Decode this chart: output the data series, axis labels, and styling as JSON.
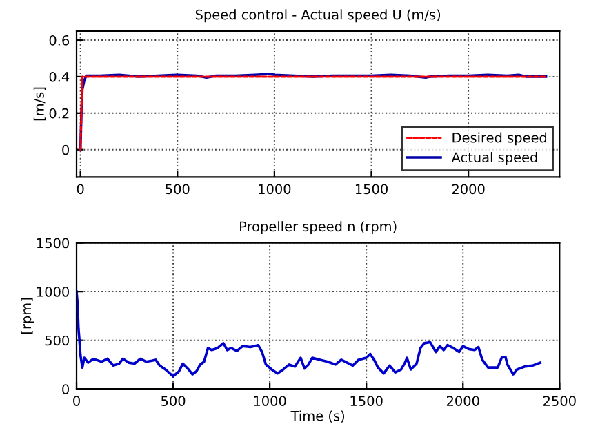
{
  "chart_data": [
    {
      "type": "line",
      "title": "Speed control - Actual speed U (m/s)",
      "ylabel": "[m/s]",
      "xlim": [
        -20,
        2470
      ],
      "ylim": [
        -0.15,
        0.65
      ],
      "xticks": [
        0,
        500,
        1000,
        1500,
        2000
      ],
      "yticks": [
        0,
        0.2,
        0.4,
        0.6
      ],
      "grid": true,
      "legend": "bottom right",
      "series": [
        {
          "name": "Desired speed",
          "color": "#ff0000",
          "line_style": "dashed",
          "x": [
            0,
            10,
            2400
          ],
          "values": [
            0,
            0.4,
            0.4
          ]
        },
        {
          "name": "Actual speed",
          "color": "#0000aa",
          "line_style": "solid",
          "x": [
            0,
            5,
            10,
            20,
            30,
            100,
            200,
            300,
            400,
            500,
            600,
            650,
            700,
            800,
            900,
            980,
            1000,
            1100,
            1200,
            1300,
            1400,
            1500,
            1600,
            1700,
            1780,
            1800,
            1900,
            2000,
            2100,
            2200,
            2260,
            2300,
            2400
          ],
          "values": [
            0,
            0.2,
            0.33,
            0.38,
            0.405,
            0.405,
            0.41,
            0.4,
            0.405,
            0.41,
            0.405,
            0.395,
            0.405,
            0.405,
            0.41,
            0.415,
            0.41,
            0.405,
            0.4,
            0.405,
            0.405,
            0.405,
            0.41,
            0.405,
            0.395,
            0.4,
            0.405,
            0.405,
            0.41,
            0.405,
            0.41,
            0.4,
            0.4
          ]
        }
      ]
    },
    {
      "type": "line",
      "title": "Propeller speed n (rpm)",
      "xlabel": "Time (s)",
      "ylabel": "[rpm]",
      "xlim": [
        0,
        2500
      ],
      "ylim": [
        0,
        1500
      ],
      "xticks": [
        0,
        500,
        1000,
        1500,
        2000,
        2500
      ],
      "yticks": [
        0,
        500,
        1000,
        1500
      ],
      "grid": true,
      "series": [
        {
          "color": "#0000cc",
          "line_style": "solid",
          "x": [
            0,
            5,
            10,
            15,
            20,
            30,
            40,
            60,
            80,
            100,
            130,
            160,
            190,
            220,
            240,
            270,
            300,
            330,
            360,
            390,
            410,
            430,
            460,
            500,
            530,
            550,
            580,
            600,
            620,
            640,
            660,
            680,
            700,
            730,
            760,
            780,
            800,
            830,
            860,
            900,
            940,
            960,
            980,
            1010,
            1040,
            1070,
            1100,
            1130,
            1160,
            1180,
            1200,
            1220,
            1260,
            1300,
            1340,
            1370,
            1400,
            1430,
            1460,
            1500,
            1520,
            1540,
            1560,
            1590,
            1620,
            1650,
            1680,
            1700,
            1710,
            1730,
            1760,
            1780,
            1800,
            1830,
            1860,
            1880,
            1900,
            1920,
            1950,
            1980,
            2000,
            2030,
            2060,
            2080,
            2100,
            2130,
            2180,
            2200,
            2220,
            2230,
            2260,
            2280,
            2320,
            2360,
            2400
          ],
          "values": [
            1000,
            880,
            620,
            500,
            350,
            220,
            320,
            270,
            300,
            300,
            280,
            310,
            240,
            260,
            310,
            270,
            260,
            310,
            280,
            290,
            300,
            240,
            200,
            130,
            180,
            260,
            200,
            150,
            180,
            250,
            280,
            420,
            400,
            420,
            470,
            400,
            420,
            390,
            440,
            430,
            450,
            380,
            250,
            200,
            160,
            200,
            250,
            230,
            320,
            210,
            250,
            320,
            300,
            280,
            250,
            300,
            270,
            240,
            300,
            320,
            360,
            300,
            220,
            160,
            240,
            170,
            200,
            270,
            320,
            200,
            260,
            420,
            470,
            480,
            380,
            440,
            400,
            450,
            420,
            380,
            440,
            410,
            400,
            430,
            300,
            220,
            220,
            320,
            330,
            250,
            150,
            200,
            230,
            240,
            270
          ]
        }
      ]
    }
  ]
}
